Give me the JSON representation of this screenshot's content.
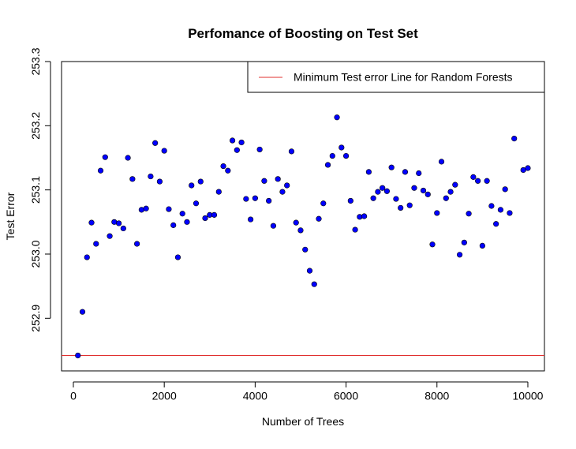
{
  "chart_data": {
    "type": "scatter",
    "title": "Perfomance of Boosting on Test Set",
    "xlabel": "Number of Trees",
    "ylabel": "Test Error",
    "x": [
      100,
      200,
      300,
      400,
      500,
      600,
      700,
      800,
      900,
      1000,
      1100,
      1200,
      1300,
      1400,
      1500,
      1600,
      1700,
      1800,
      1900,
      2000,
      2100,
      2200,
      2300,
      2400,
      2500,
      2600,
      2700,
      2800,
      2900,
      3000,
      3100,
      3200,
      3300,
      3400,
      3500,
      3600,
      3700,
      3800,
      3900,
      4000,
      4100,
      4200,
      4300,
      4400,
      4500,
      4600,
      4700,
      4800,
      4900,
      5000,
      5100,
      5200,
      5300,
      5400,
      5500,
      5600,
      5700,
      5800,
      5900,
      6000,
      6100,
      6200,
      6300,
      6400,
      6500,
      6600,
      6700,
      6800,
      6900,
      7000,
      7100,
      7200,
      7300,
      7400,
      7500,
      7600,
      7700,
      7800,
      7900,
      8000,
      8100,
      8200,
      8300,
      8400,
      8500,
      8600,
      8700,
      8800,
      8900,
      9000,
      9100,
      9200,
      9300,
      9400,
      9500,
      9600,
      9700,
      9900,
      10000
    ],
    "values": [
      252.842,
      252.91,
      252.995,
      253.049,
      253.016,
      253.13,
      253.151,
      253.028,
      253.05,
      253.048,
      253.04,
      253.15,
      253.117,
      253.016,
      253.069,
      253.071,
      253.121,
      253.173,
      253.113,
      253.161,
      253.07,
      253.045,
      252.995,
      253.063,
      253.05,
      253.107,
      253.079,
      253.113,
      253.056,
      253.061,
      253.061,
      253.097,
      253.137,
      253.13,
      253.177,
      253.162,
      253.174,
      253.086,
      253.054,
      253.087,
      253.163,
      253.114,
      253.083,
      253.044,
      253.117,
      253.097,
      253.107,
      253.16,
      253.049,
      253.037,
      253.007,
      252.974,
      252.953,
      253.055,
      253.079,
      253.139,
      253.153,
      253.213,
      253.166,
      253.153,
      253.083,
      253.038,
      253.058,
      253.059,
      253.128,
      253.087,
      253.097,
      253.103,
      253.098,
      253.135,
      253.086,
      253.072,
      253.128,
      253.076,
      253.103,
      253.126,
      253.099,
      253.093,
      253.015,
      253.064,
      253.144,
      253.087,
      253.097,
      253.108,
      252.999,
      253.018,
      253.063,
      253.12,
      253.114,
      253.013,
      253.114,
      253.075,
      253.047,
      253.069,
      253.101,
      253.064,
      253.18,
      253.131,
      253.134
    ],
    "color": "#0000ff",
    "hline": {
      "name": "Minimum Test error Line for Random Forests",
      "value": 252.842,
      "color": "#e0302f"
    },
    "legend": "top-right",
    "xlim": [
      -260,
      10365
    ],
    "ylim": [
      252.818,
      253.3
    ],
    "xticks": [
      0,
      2000,
      4000,
      6000,
      8000,
      10000
    ],
    "yticks": [
      252.9,
      {
        "value": 253,
        "label": "253.0"
      },
      253.1,
      253.2,
      253.3
    ]
  }
}
